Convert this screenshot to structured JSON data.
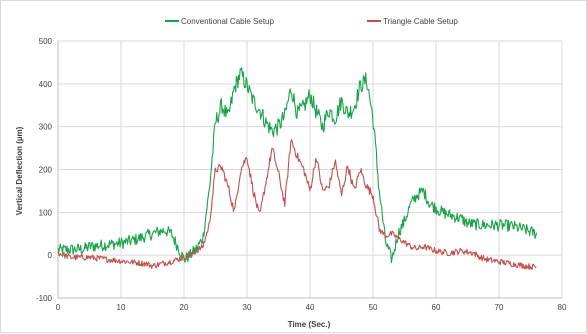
{
  "chart_data": {
    "type": "line",
    "title": "",
    "xlabel": "Time (Sec.)",
    "ylabel": "Vertical Deflection (µm)",
    "xlim": [
      0,
      80
    ],
    "ylim": [
      -100,
      500
    ],
    "xticks": [
      0,
      10,
      20,
      30,
      40,
      50,
      60,
      70,
      80
    ],
    "yticks": [
      -100,
      0,
      100,
      200,
      300,
      400,
      500
    ],
    "grid": true,
    "legend_position": "top",
    "series": [
      {
        "name": "Conventional Cable Setup",
        "color": "#1aa34a",
        "noise": 14,
        "points": [
          [
            0,
            12
          ],
          [
            4,
            14
          ],
          [
            5,
            20
          ],
          [
            8,
            25
          ],
          [
            10,
            28
          ],
          [
            12,
            35
          ],
          [
            14,
            45
          ],
          [
            16,
            55
          ],
          [
            17,
            58
          ],
          [
            18,
            50
          ],
          [
            19,
            20
          ],
          [
            20,
            -10
          ],
          [
            21,
            0
          ],
          [
            22,
            15
          ],
          [
            23,
            40
          ],
          [
            24,
            150
          ],
          [
            25,
            310
          ],
          [
            26,
            350
          ],
          [
            27,
            320
          ],
          [
            28,
            390
          ],
          [
            29,
            425
          ],
          [
            30,
            395
          ],
          [
            31,
            360
          ],
          [
            32,
            340
          ],
          [
            33,
            310
          ],
          [
            34,
            290
          ],
          [
            35,
            300
          ],
          [
            36,
            325
          ],
          [
            37,
            390
          ],
          [
            38,
            330
          ],
          [
            39,
            345
          ],
          [
            40,
            375
          ],
          [
            41,
            335
          ],
          [
            42,
            300
          ],
          [
            43,
            340
          ],
          [
            44,
            320
          ],
          [
            45,
            360
          ],
          [
            46,
            330
          ],
          [
            47,
            345
          ],
          [
            48,
            395
          ],
          [
            49,
            410
          ],
          [
            50,
            320
          ],
          [
            51,
            150
          ],
          [
            52,
            30
          ],
          [
            53,
            -10
          ],
          [
            54,
            50
          ],
          [
            55,
            80
          ],
          [
            56,
            120
          ],
          [
            57,
            140
          ],
          [
            58,
            150
          ],
          [
            59,
            120
          ],
          [
            60,
            110
          ],
          [
            61,
            100
          ],
          [
            62,
            95
          ],
          [
            63,
            90
          ],
          [
            64,
            85
          ],
          [
            65,
            75
          ],
          [
            66,
            72
          ],
          [
            68,
            70
          ],
          [
            70,
            70
          ],
          [
            72,
            68
          ],
          [
            74,
            60
          ],
          [
            75,
            55
          ],
          [
            76,
            50
          ]
        ]
      },
      {
        "name": "Triangle Cable Setup",
        "color": "#c0504d",
        "noise": 7,
        "points": [
          [
            0,
            5
          ],
          [
            2,
            -5
          ],
          [
            5,
            -5
          ],
          [
            8,
            -10
          ],
          [
            11,
            -15
          ],
          [
            14,
            -20
          ],
          [
            15,
            -25
          ],
          [
            17,
            -18
          ],
          [
            19,
            -10
          ],
          [
            21,
            0
          ],
          [
            22,
            10
          ],
          [
            23,
            20
          ],
          [
            24,
            70
          ],
          [
            25,
            200
          ],
          [
            26,
            205
          ],
          [
            27,
            160
          ],
          [
            28,
            100
          ],
          [
            29,
            200
          ],
          [
            30,
            230
          ],
          [
            31,
            150
          ],
          [
            32,
            90
          ],
          [
            33,
            170
          ],
          [
            34,
            250
          ],
          [
            35,
            190
          ],
          [
            36,
            120
          ],
          [
            37,
            270
          ],
          [
            38,
            230
          ],
          [
            39,
            200
          ],
          [
            40,
            150
          ],
          [
            41,
            230
          ],
          [
            42,
            150
          ],
          [
            43,
            160
          ],
          [
            44,
            220
          ],
          [
            45,
            140
          ],
          [
            46,
            210
          ],
          [
            47,
            150
          ],
          [
            48,
            200
          ],
          [
            49,
            160
          ],
          [
            50,
            140
          ],
          [
            51,
            60
          ],
          [
            52,
            45
          ],
          [
            53,
            50
          ],
          [
            54,
            40
          ],
          [
            55,
            30
          ],
          [
            56,
            20
          ],
          [
            57,
            15
          ],
          [
            58,
            20
          ],
          [
            60,
            10
          ],
          [
            62,
            5
          ],
          [
            64,
            10
          ],
          [
            66,
            5
          ],
          [
            67,
            -5
          ],
          [
            68,
            -10
          ],
          [
            70,
            -15
          ],
          [
            72,
            -20
          ],
          [
            74,
            -25
          ],
          [
            76,
            -28
          ]
        ]
      }
    ]
  }
}
